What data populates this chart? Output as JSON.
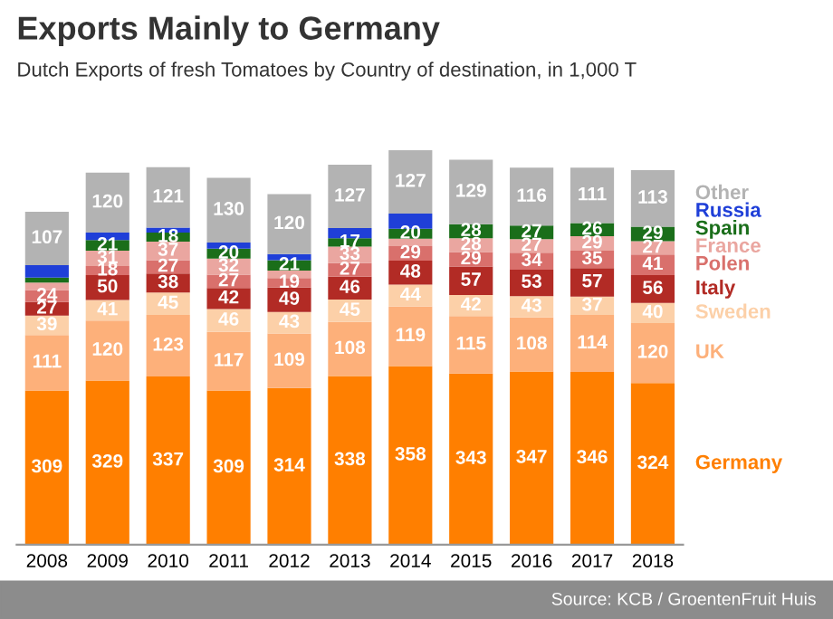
{
  "chart_data": {
    "type": "bar",
    "stacked": true,
    "title": "Exports Mainly to Germany",
    "subtitle": "Dutch Exports of fresh Tomatoes by Country of destination, in 1,000 T",
    "categories": [
      "2008",
      "2009",
      "2010",
      "2011",
      "2012",
      "2013",
      "2014",
      "2015",
      "2016",
      "2017",
      "2018"
    ],
    "series": [
      {
        "name": "Germany",
        "color": "#ff7f00",
        "values": [
          309,
          329,
          337,
          309,
          314,
          338,
          358,
          343,
          347,
          346,
          324
        ],
        "value_labels": [
          "309",
          "329",
          "337",
          "309",
          "314",
          "338",
          "358",
          "343",
          "347",
          "346",
          "324"
        ]
      },
      {
        "name": "UK",
        "color": "#fdb07a",
        "values": [
          111,
          120,
          123,
          117,
          109,
          108,
          119,
          115,
          108,
          114,
          120
        ],
        "value_labels": [
          "111",
          "120",
          "123",
          "117",
          "109",
          "108",
          "119",
          "115",
          "108",
          "114",
          "120"
        ]
      },
      {
        "name": "Sweden",
        "color": "#fcd0a8",
        "values": [
          39,
          41,
          45,
          46,
          43,
          45,
          44,
          42,
          43,
          37,
          40
        ],
        "value_labels": [
          "39",
          "41",
          "45",
          "46",
          "43",
          "45",
          "44",
          "42",
          "43",
          "37",
          "40"
        ]
      },
      {
        "name": "Italy",
        "color": "#b22b25",
        "values": [
          27,
          50,
          38,
          42,
          49,
          46,
          48,
          57,
          53,
          57,
          56
        ],
        "value_labels": [
          "27",
          "50",
          "38",
          "42",
          "49",
          "46",
          "48",
          "57",
          "53",
          "57",
          "56"
        ]
      },
      {
        "name": "Polen",
        "color": "#d9706c",
        "values": [
          24,
          18,
          27,
          27,
          19,
          27,
          29,
          29,
          34,
          35,
          41
        ],
        "value_labels": [
          "24",
          "18",
          "27",
          "27",
          "19",
          "27",
          "29",
          "29",
          "34",
          "35",
          "41"
        ]
      },
      {
        "name": "France",
        "color": "#eaa6a0",
        "values": [
          15,
          31,
          37,
          32,
          15,
          33,
          15,
          28,
          27,
          29,
          27
        ],
        "value_labels": [
          null,
          "31",
          "37",
          "32",
          null,
          "33",
          null,
          "28",
          "27",
          "29",
          "27"
        ]
      },
      {
        "name": "Spain",
        "color": "#1a6e1a",
        "values": [
          10,
          21,
          18,
          20,
          21,
          17,
          20,
          28,
          27,
          26,
          29
        ],
        "value_labels": [
          null,
          "21",
          "18",
          "20",
          "21",
          "17",
          "20",
          "28",
          "27",
          "26",
          "29"
        ]
      },
      {
        "name": "Russia",
        "color": "#1f3fd8",
        "values": [
          25,
          15,
          10,
          12,
          12,
          20,
          30,
          0,
          0,
          0,
          0
        ],
        "value_labels": [
          null,
          null,
          null,
          null,
          null,
          null,
          null,
          null,
          null,
          null,
          null
        ]
      },
      {
        "name": "Other",
        "color": "#b3b3b3",
        "values": [
          107,
          120,
          121,
          130,
          120,
          127,
          127,
          129,
          116,
          111,
          113
        ],
        "value_labels": [
          "107",
          "120",
          "121",
          "130",
          "120",
          "127",
          "127",
          "129",
          "116",
          "111",
          "113"
        ]
      }
    ],
    "annotations": [
      "Source: KCB / GroentenFruit Huis"
    ]
  }
}
